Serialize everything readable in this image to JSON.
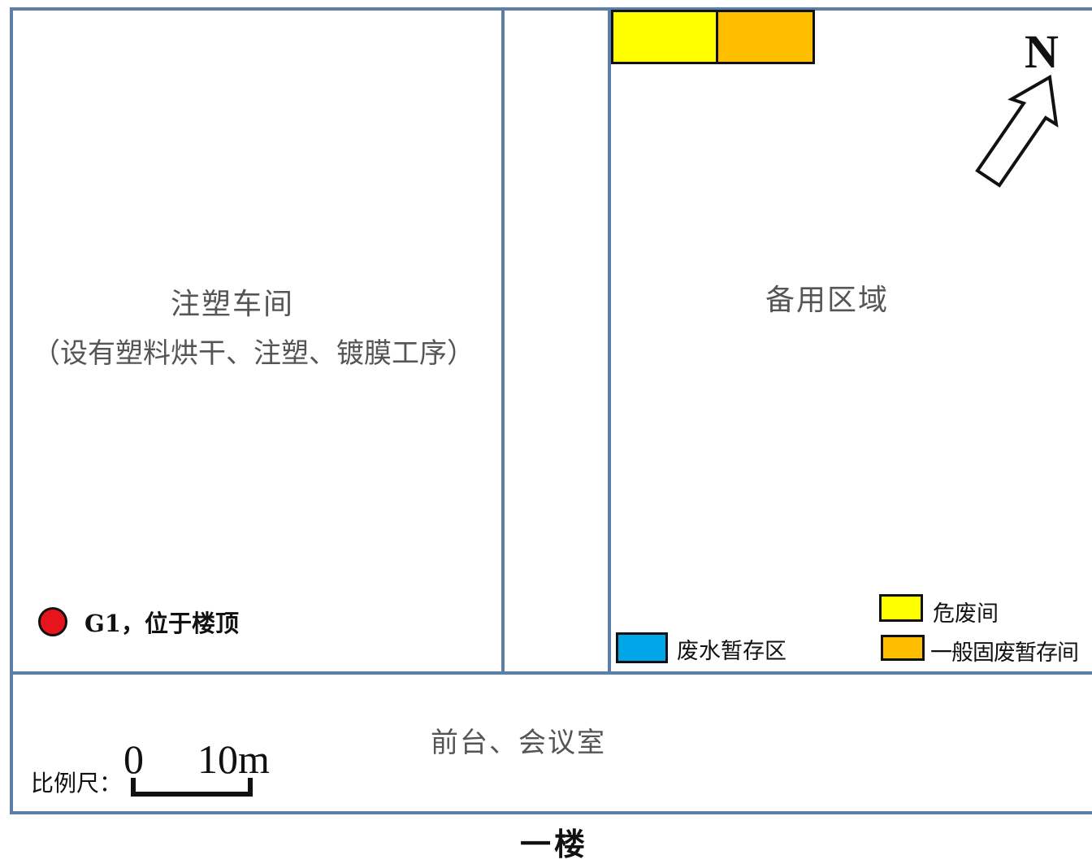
{
  "rooms": {
    "injection_workshop": {
      "name": "注塑车间",
      "note": "（设有塑料烘干、注塑、镀膜工序）"
    },
    "reserve_area": {
      "name": "备用区域"
    },
    "front_desk": {
      "name": "前台、会议室"
    }
  },
  "compass": {
    "label": "N"
  },
  "monitoring_point": {
    "label": "G1，位于楼顶",
    "color": "#e8141c"
  },
  "legend": {
    "hazardous_waste": {
      "label": "危废间",
      "color": "#ffff00"
    },
    "general_solid_waste": {
      "label": "一般固废暂存间",
      "color": "#ffbf00"
    },
    "wastewater": {
      "label": "废水暂存区",
      "color": "#00a6e8"
    }
  },
  "scale": {
    "label": "比例尺：",
    "zero": "0",
    "distance": "10m"
  },
  "floor_label": "一楼",
  "colors": {
    "wall": "#5b7fa6"
  }
}
